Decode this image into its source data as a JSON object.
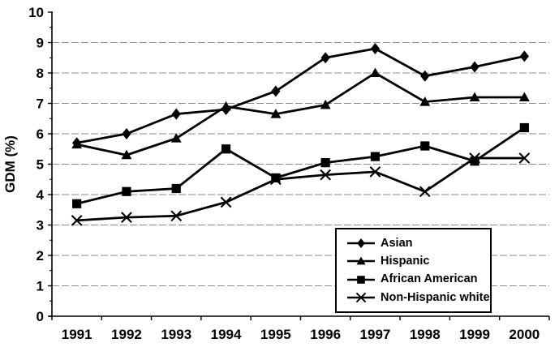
{
  "chart_data": {
    "type": "line",
    "title": "",
    "xlabel": "",
    "ylabel": "GDM (%)",
    "ylim": [
      0,
      10
    ],
    "ytick_interval": 1,
    "y_minor_tick_interval": 0.5,
    "grid": "horizontal",
    "legend_position": "inside-bottom-right",
    "axis_color": "#000000",
    "gridline_color": "#8c8c8c",
    "line_color": "#000000",
    "categories": [
      "1991",
      "1992",
      "1993",
      "1994",
      "1995",
      "1996",
      "1997",
      "1998",
      "1999",
      "2000"
    ],
    "series": [
      {
        "name": "Asian",
        "marker": "diamond",
        "color": "#000000",
        "values": [
          5.7,
          6.0,
          6.65,
          6.8,
          7.4,
          8.5,
          8.8,
          7.9,
          8.2,
          8.55
        ]
      },
      {
        "name": "Hispanic",
        "marker": "triangle",
        "color": "#000000",
        "values": [
          5.65,
          5.3,
          5.85,
          6.9,
          6.65,
          6.95,
          8.0,
          7.05,
          7.2,
          7.2
        ]
      },
      {
        "name": "African American",
        "marker": "square",
        "color": "#000000",
        "values": [
          3.7,
          4.1,
          4.2,
          5.5,
          4.55,
          5.05,
          5.25,
          5.6,
          5.1,
          6.2
        ]
      },
      {
        "name": "Non-Hispanic white",
        "marker": "x",
        "color": "#000000",
        "values": [
          3.15,
          3.25,
          3.3,
          3.75,
          4.5,
          4.65,
          4.75,
          4.1,
          5.2,
          5.2
        ]
      }
    ]
  }
}
